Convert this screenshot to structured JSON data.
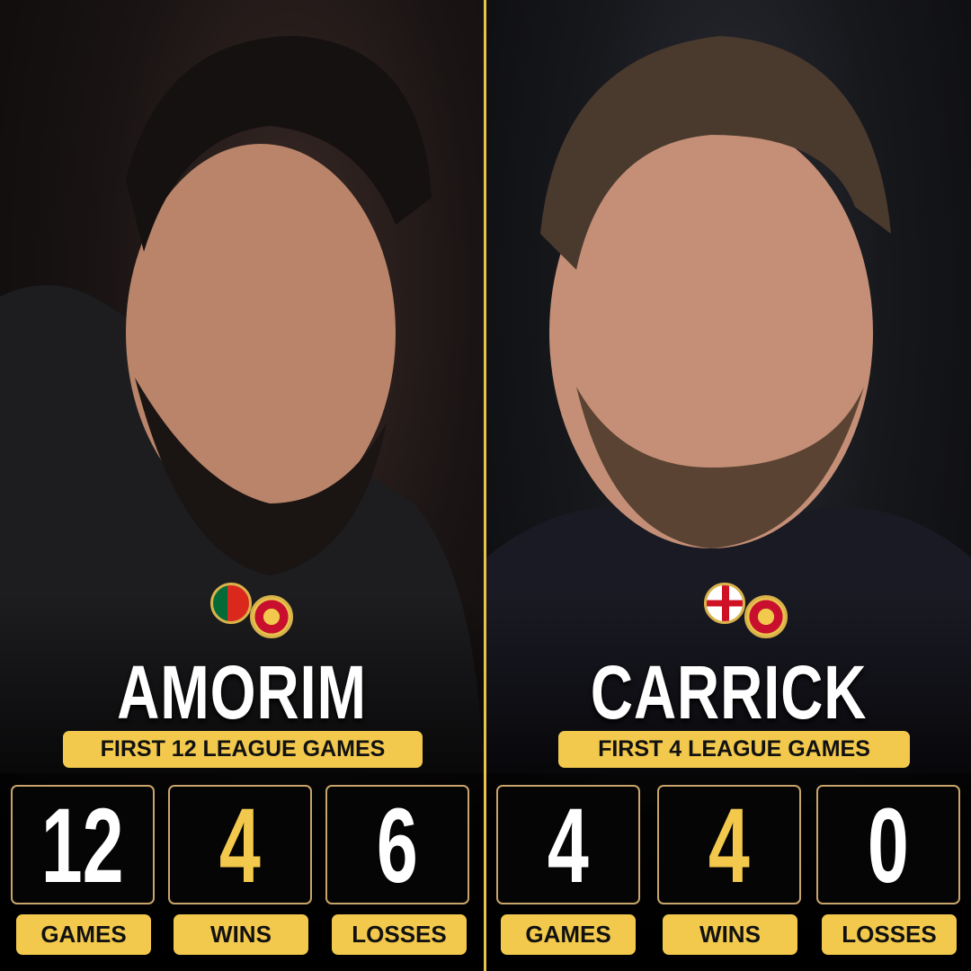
{
  "colors": {
    "accent": "#f2c94c",
    "box_border": "#c9a46a",
    "background": "#0b0a0a"
  },
  "left": {
    "name": "AMORIM",
    "subtitle": "FIRST 12 LEAGUE GAMES",
    "flag": "portugal-flag",
    "crest": "manchester-united-crest",
    "stats": [
      {
        "value": "12",
        "label": "GAMES"
      },
      {
        "value": "4",
        "label": "WINS"
      },
      {
        "value": "6",
        "label": "LOSSES"
      }
    ]
  },
  "right": {
    "name": "CARRICK",
    "subtitle": "FIRST 4 LEAGUE GAMES",
    "flag": "england-flag",
    "crest": "manchester-united-crest",
    "stats": [
      {
        "value": "4",
        "label": "GAMES"
      },
      {
        "value": "4",
        "label": "WINS"
      },
      {
        "value": "0",
        "label": "LOSSES"
      }
    ]
  }
}
